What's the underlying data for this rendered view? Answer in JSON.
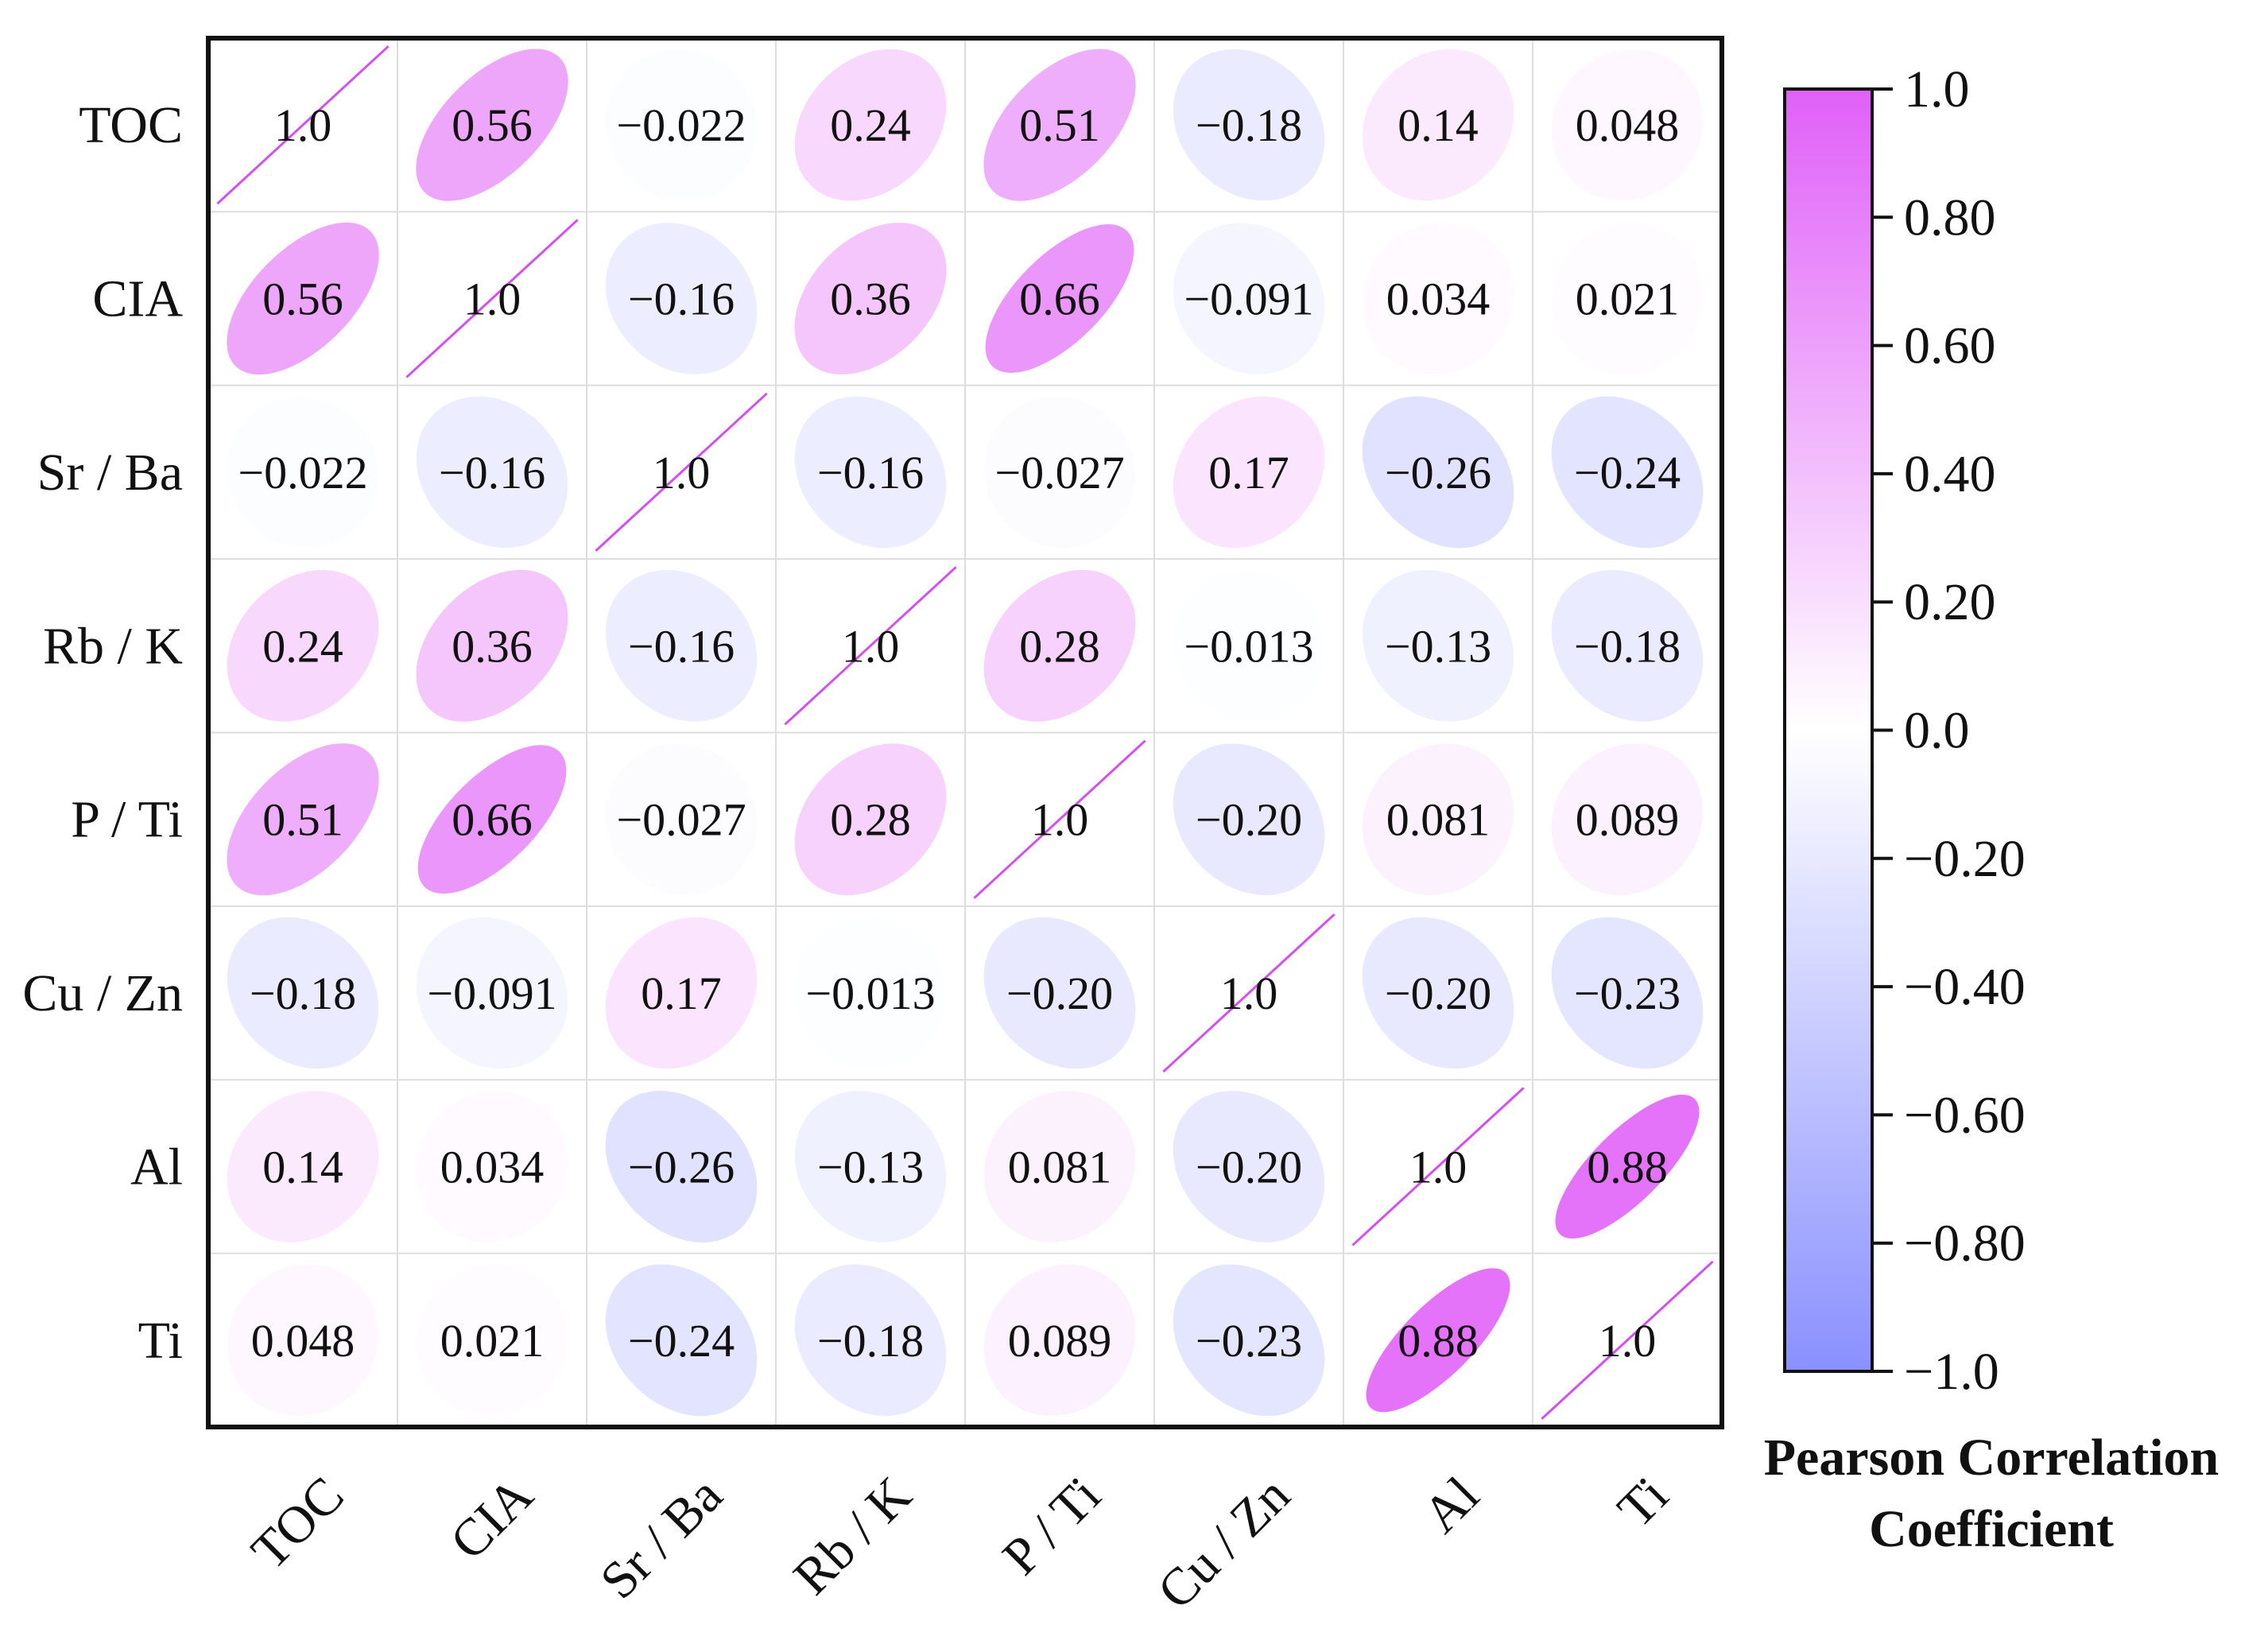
{
  "chart_data": {
    "type": "heatmap",
    "subtype": "correlation-ellipse-matrix",
    "variables": [
      "TOC",
      "CIA",
      "Sr / Ba",
      "Rb / K",
      "P / Ti",
      "Cu / Zn",
      "Al",
      "Ti"
    ],
    "matrix": [
      [
        1.0,
        0.56,
        -0.022,
        0.24,
        0.51,
        -0.18,
        0.14,
        0.048
      ],
      [
        0.56,
        1.0,
        -0.16,
        0.36,
        0.66,
        -0.091,
        0.034,
        0.021
      ],
      [
        -0.022,
        -0.16,
        1.0,
        -0.16,
        -0.027,
        0.17,
        -0.26,
        -0.24
      ],
      [
        0.24,
        0.36,
        -0.16,
        1.0,
        0.28,
        -0.013,
        -0.13,
        -0.18
      ],
      [
        0.51,
        0.66,
        -0.027,
        0.28,
        1.0,
        -0.2,
        0.081,
        0.089
      ],
      [
        -0.18,
        -0.091,
        0.17,
        -0.013,
        -0.2,
        1.0,
        -0.2,
        -0.23
      ],
      [
        0.14,
        0.034,
        -0.26,
        -0.13,
        0.081,
        -0.2,
        1.0,
        0.88
      ],
      [
        0.048,
        0.021,
        -0.24,
        -0.18,
        0.089,
        -0.23,
        0.88,
        1.0
      ]
    ],
    "labels": [
      [
        "1.0",
        "0.56",
        "−0.022",
        "0.24",
        "0.51",
        "−0.18",
        "0.14",
        "0.048"
      ],
      [
        "0.56",
        "1.0",
        "−0.16",
        "0.36",
        "0.66",
        "−0.091",
        "0.034",
        "0.021"
      ],
      [
        "−0.022",
        "−0.16",
        "1.0",
        "−0.16",
        "−0.027",
        "0.17",
        "−0.26",
        "−0.24"
      ],
      [
        "0.24",
        "0.36",
        "−0.16",
        "1.0",
        "0.28",
        "−0.013",
        "−0.13",
        "−0.18"
      ],
      [
        "0.51",
        "0.66",
        "−0.027",
        "0.28",
        "1.0",
        "−0.20",
        "0.081",
        "0.089"
      ],
      [
        "−0.18",
        "−0.091",
        "0.17",
        "−0.013",
        "−0.20",
        "1.0",
        "−0.20",
        "−0.23"
      ],
      [
        "0.14",
        "0.034",
        "−0.26",
        "−0.13",
        "0.081",
        "−0.20",
        "1.0",
        "0.88"
      ],
      [
        "0.048",
        "0.021",
        "−0.24",
        "−0.18",
        "0.089",
        "−0.23",
        "0.88",
        "1.0"
      ]
    ],
    "colorbar": {
      "title": [
        "Pearson Correlation",
        "Coefficient"
      ],
      "range": [
        -1.0,
        1.0
      ],
      "ticks": [
        1.0,
        0.8,
        0.6,
        0.4,
        0.2,
        0.0,
        -0.2,
        -0.4,
        -0.6,
        -0.8,
        -1.0
      ],
      "tick_labels": [
        "1.0",
        "0.80",
        "0.60",
        "0.40",
        "0.20",
        "0.0",
        "−0.20",
        "−0.40",
        "−0.60",
        "−0.80",
        "−1.0"
      ],
      "color_positive": "#e060f8",
      "color_zero": "#ffffff",
      "color_negative": "#8a90ff"
    },
    "diagonal_line_color": "#d24ff0",
    "grid_color": "#dddddd",
    "border_color": "#111111"
  }
}
